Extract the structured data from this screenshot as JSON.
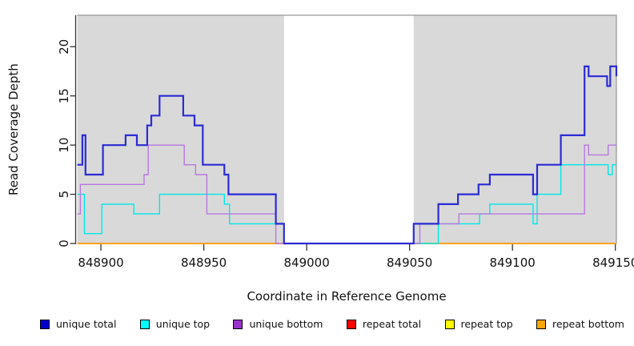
{
  "figure": {
    "x_axis_label": "Coordinate in Reference Genome",
    "y_axis_label": "Read Coverage Depth"
  },
  "legend": {
    "items": [
      {
        "label": "unique total",
        "color": "#0000cd"
      },
      {
        "label": "unique top",
        "color": "#00ffff"
      },
      {
        "label": "unique bottom",
        "color": "#9932cc"
      },
      {
        "label": "repeat total",
        "color": "#ff0000"
      },
      {
        "label": "repeat top",
        "color": "#ffff00"
      },
      {
        "label": "repeat bottom",
        "color": "#ffa500"
      }
    ]
  },
  "chart_data": {
    "type": "line",
    "subtype": "step",
    "title": "",
    "xlabel": "Coordinate in Reference Genome",
    "ylabel": "Read Coverage Depth",
    "xlim": [
      848888.5,
      849150.5
    ],
    "ylim": [
      0,
      23.2
    ],
    "x_ticks": [
      848900,
      848950,
      849000,
      849050,
      849100,
      849150
    ],
    "y_ticks": [
      0,
      5,
      10,
      15,
      20
    ],
    "grid": false,
    "legend_position": "bottom",
    "plot_background": "#ffffff",
    "background_regions": [
      {
        "name": "covered-region-left",
        "x0": 848888.5,
        "x1": 848989,
        "color": "#d9d9d9"
      },
      {
        "name": "covered-region-right",
        "x0": 849052,
        "x1": 849150.5,
        "color": "#d9d9d9"
      }
    ],
    "draw_order": [
      "repeat total",
      "repeat top",
      "repeat bottom",
      "unique top",
      "unique bottom",
      "unique total"
    ],
    "series": [
      {
        "name": "unique total",
        "line_color": "#2b2bd4",
        "line_width": 2.2,
        "points": [
          [
            848888.5,
            8
          ],
          [
            848891,
            11
          ],
          [
            848892.5,
            7
          ],
          [
            848901,
            10
          ],
          [
            848912,
            11
          ],
          [
            848917.5,
            10
          ],
          [
            848922.5,
            12
          ],
          [
            848924.5,
            13
          ],
          [
            848928.5,
            15
          ],
          [
            848940,
            13
          ],
          [
            848945.5,
            12
          ],
          [
            848949.5,
            8
          ],
          [
            848960,
            7
          ],
          [
            848962,
            5
          ],
          [
            848985,
            2
          ],
          [
            848989,
            0
          ],
          [
            849052,
            2
          ],
          [
            849064,
            4
          ],
          [
            849073.5,
            5
          ],
          [
            849083.5,
            6
          ],
          [
            849089,
            7
          ],
          [
            849110,
            5
          ],
          [
            849112,
            8
          ],
          [
            849123.5,
            11
          ],
          [
            849135,
            18
          ],
          [
            849137,
            17
          ],
          [
            849146,
            16
          ],
          [
            849147.5,
            18
          ],
          [
            849150.5,
            17
          ]
        ]
      },
      {
        "name": "unique top",
        "line_color": "#00e8e8",
        "line_width": 1.4,
        "points": [
          [
            848888.5,
            5
          ],
          [
            848892,
            1
          ],
          [
            848900.5,
            4
          ],
          [
            848916,
            3
          ],
          [
            848928.5,
            5
          ],
          [
            848960,
            4
          ],
          [
            848962.5,
            2
          ],
          [
            848989,
            0
          ],
          [
            849064,
            2
          ],
          [
            849084,
            3
          ],
          [
            849089,
            4
          ],
          [
            849110,
            2
          ],
          [
            849112,
            5
          ],
          [
            849123.5,
            8
          ],
          [
            849146.5,
            7
          ],
          [
            849148.5,
            8
          ]
        ]
      },
      {
        "name": "unique bottom",
        "line_color": "#b878de",
        "line_width": 1.4,
        "points": [
          [
            848888.5,
            3
          ],
          [
            848890,
            6
          ],
          [
            848921,
            7
          ],
          [
            848923,
            10
          ],
          [
            848940.5,
            8
          ],
          [
            848946,
            7
          ],
          [
            848951.5,
            3
          ],
          [
            848985,
            0
          ],
          [
            849055,
            2
          ],
          [
            849074,
            3
          ],
          [
            849135,
            10
          ],
          [
            849137,
            9
          ],
          [
            849146.5,
            10
          ]
        ]
      },
      {
        "name": "repeat total",
        "line_color": "#ff0000",
        "line_width": 1.4,
        "points": [
          [
            848888.5,
            0
          ]
        ]
      },
      {
        "name": "repeat top",
        "line_color": "#ffff00",
        "line_width": 1.4,
        "points": [
          [
            848888.5,
            0
          ]
        ]
      },
      {
        "name": "repeat bottom",
        "line_color": "#ffa023",
        "line_width": 2,
        "points": [
          [
            848888.5,
            0
          ]
        ]
      }
    ]
  }
}
